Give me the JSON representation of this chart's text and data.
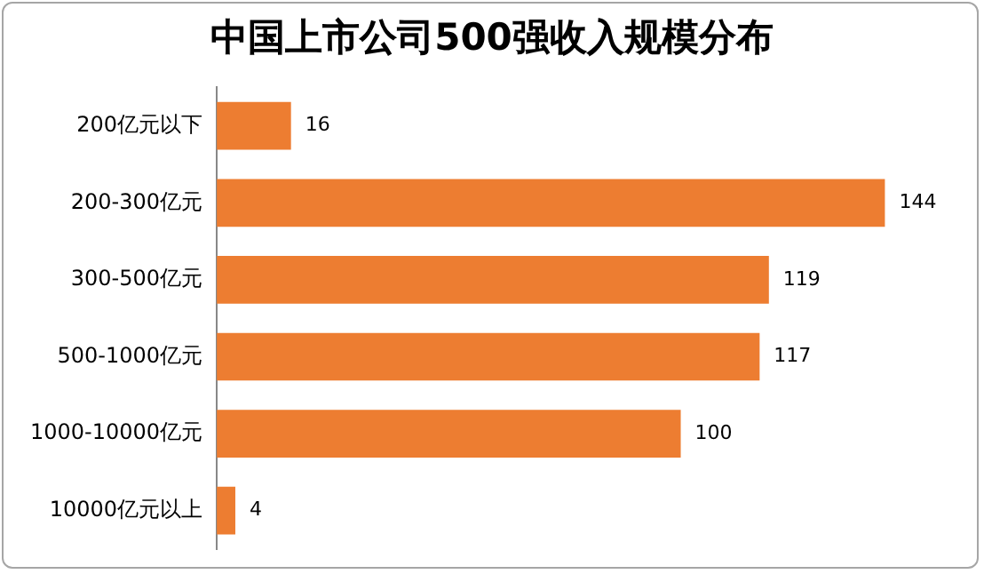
{
  "chart_data": {
    "type": "bar",
    "orientation": "horizontal",
    "title": "中国上市公司500强收入规模分布",
    "categories": [
      "200亿元以下",
      "200-300亿元",
      "300-500亿元",
      "500-1000亿元",
      "1000-10000亿元",
      "10000亿元以上"
    ],
    "values": [
      16,
      144,
      119,
      117,
      100,
      4
    ],
    "color": "#ed7d31",
    "data_labels": true,
    "legend": false,
    "tick_labels": "y"
  }
}
